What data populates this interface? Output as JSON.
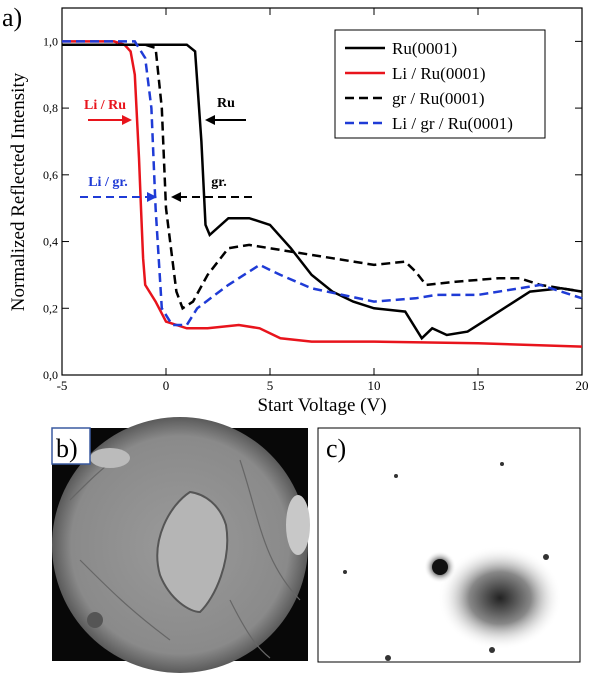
{
  "chart_data": {
    "type": "line",
    "panel_labels": [
      "a)",
      "b)",
      "c)"
    ],
    "xlabel": "Start Voltage (V)",
    "ylabel": "Normalized Reflected Intensity",
    "xlim": [
      -5,
      20
    ],
    "xticks": [
      -5,
      0,
      5,
      10,
      15,
      20
    ],
    "ylim": [
      0,
      1.1
    ],
    "yticks": [
      {
        "value": 0,
        "label": "0,0"
      },
      {
        "value": 0.2,
        "label": "0,2"
      },
      {
        "value": 0.4,
        "label": "0,4"
      },
      {
        "value": 0.6,
        "label": "0,6"
      },
      {
        "value": 0.8,
        "label": "0,8"
      },
      {
        "value": 1.0,
        "label": "1,0"
      }
    ],
    "legend": "upper right",
    "annotations": [
      {
        "text": "Li / Ru",
        "color": "#e8141c"
      },
      {
        "text": "Ru",
        "color": "#000000"
      },
      {
        "text": "Li / gr.",
        "color": "#1f3bd6"
      },
      {
        "text": "gr.",
        "color": "#000000"
      }
    ],
    "series": [
      {
        "name": "Ru(0001)",
        "color": "#000000",
        "dash": false,
        "x": [
          -5,
          -2,
          0,
          1,
          1.4,
          1.7,
          1.9,
          2.1,
          3,
          4,
          5,
          6,
          7,
          8,
          9,
          10,
          11.5,
          12.3,
          12.8,
          13.5,
          14.5,
          15.5,
          16.5,
          17.5,
          19,
          20
        ],
        "values": [
          0.99,
          0.99,
          0.99,
          0.99,
          0.97,
          0.7,
          0.45,
          0.42,
          0.47,
          0.47,
          0.45,
          0.38,
          0.3,
          0.25,
          0.22,
          0.2,
          0.19,
          0.11,
          0.14,
          0.12,
          0.13,
          0.17,
          0.21,
          0.25,
          0.26,
          0.25
        ]
      },
      {
        "name": "Li / Ru(0001)",
        "color": "#e8141c",
        "dash": false,
        "x": [
          -5,
          -2.5,
          -2,
          -1.7,
          -1.5,
          -1.3,
          -1.2,
          -1.1,
          -1,
          -0.5,
          0,
          1,
          2,
          3.5,
          4.5,
          5.5,
          7,
          10,
          15,
          20
        ],
        "values": [
          1.0,
          1.0,
          0.99,
          0.97,
          0.9,
          0.65,
          0.5,
          0.35,
          0.27,
          0.22,
          0.16,
          0.14,
          0.14,
          0.15,
          0.14,
          0.11,
          0.1,
          0.1,
          0.095,
          0.085
        ]
      },
      {
        "name": "gr / Ru(0001)",
        "color": "#000000",
        "dash": true,
        "x": [
          -5,
          -1,
          -0.5,
          -0.2,
          0,
          0.3,
          0.5,
          0.8,
          1.3,
          2,
          3,
          4,
          6,
          8,
          10,
          11.5,
          12,
          12.5,
          14,
          16,
          17,
          18,
          20
        ],
        "values": [
          0.99,
          0.99,
          0.98,
          0.8,
          0.5,
          0.35,
          0.25,
          0.2,
          0.22,
          0.3,
          0.38,
          0.39,
          0.37,
          0.35,
          0.33,
          0.34,
          0.31,
          0.27,
          0.28,
          0.29,
          0.29,
          0.27,
          0.25
        ]
      },
      {
        "name": "Li / gr / Ru(0001)",
        "color": "#1f3bd6",
        "dash": true,
        "x": [
          -5,
          -1.5,
          -1,
          -0.7,
          -0.5,
          -0.2,
          0.3,
          1,
          1.5,
          3,
          4.5,
          5.5,
          7,
          10,
          12,
          13,
          15,
          17,
          18,
          20
        ],
        "values": [
          1.0,
          1.0,
          0.95,
          0.8,
          0.5,
          0.2,
          0.15,
          0.15,
          0.2,
          0.27,
          0.33,
          0.3,
          0.26,
          0.22,
          0.23,
          0.24,
          0.24,
          0.26,
          0.27,
          0.23
        ]
      }
    ]
  }
}
